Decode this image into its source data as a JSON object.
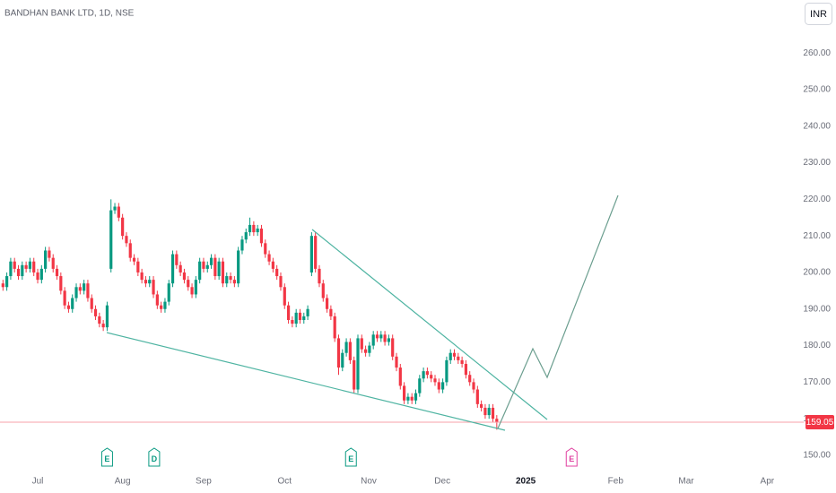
{
  "chart_data": {
    "type": "candlestick",
    "title": "BANDHAN BANK LTD, 1D, NSE",
    "currency": "INR",
    "series": [
      {
        "up_color": "#089981",
        "down_color": "#f23645",
        "open": [
          197,
          196,
          199,
          203,
          201,
          199,
          202,
          201,
          203,
          200,
          198,
          201,
          206,
          204,
          201,
          199,
          195,
          191,
          190,
          193,
          196,
          195,
          197,
          193,
          190,
          188,
          186,
          185,
          201,
          217,
          218,
          215,
          210,
          208,
          204,
          203,
          200,
          198,
          197,
          198,
          194,
          191,
          190,
          192,
          197,
          205,
          202,
          200,
          198,
          196,
          194,
          198,
          203,
          201,
          202,
          204,
          199,
          203,
          197,
          199,
          198,
          197,
          206,
          209,
          211,
          213,
          211,
          212,
          208,
          205,
          203,
          201,
          199,
          196,
          191,
          187,
          186,
          189,
          187,
          188,
          200,
          210,
          201,
          197,
          193,
          190,
          188,
          182,
          174,
          178,
          181,
          176,
          168,
          182,
          179,
          178,
          180,
          183,
          182,
          183,
          181,
          182,
          177,
          174,
          169,
          165,
          166,
          165,
          167,
          171,
          173,
          172,
          171,
          170,
          168,
          170,
          176,
          178,
          177,
          176,
          175,
          172,
          170,
          168,
          164,
          163,
          161,
          163,
          160
        ],
        "high": [
          198,
          200,
          204,
          204,
          202,
          203,
          203,
          204,
          204,
          201,
          202,
          207,
          207,
          205,
          202,
          200,
          196,
          192,
          194,
          197,
          197,
          198,
          198,
          194,
          191,
          189,
          187,
          192,
          220,
          219,
          219,
          216,
          211,
          209,
          205,
          204,
          201,
          199,
          199,
          199,
          195,
          192,
          193,
          198,
          206,
          206,
          203,
          201,
          199,
          197,
          199,
          204,
          204,
          203,
          205,
          205,
          204,
          204,
          200,
          200,
          199,
          207,
          210,
          212,
          215,
          214,
          213,
          213,
          209,
          206,
          204,
          202,
          200,
          197,
          192,
          188,
          190,
          190,
          189,
          191,
          211,
          211,
          202,
          198,
          194,
          191,
          189,
          183,
          179,
          182,
          182,
          177,
          183,
          183,
          180,
          181,
          184,
          184,
          184,
          184,
          183,
          183,
          178,
          175,
          170,
          167,
          167,
          168,
          172,
          174,
          174,
          173,
          172,
          171,
          171,
          177,
          179,
          179,
          178,
          177,
          176,
          173,
          171,
          169,
          165,
          164,
          164,
          164,
          161
        ],
        "low": [
          195,
          195,
          198,
          200,
          198,
          198,
          200,
          200,
          199,
          197,
          197,
          200,
          203,
          200,
          198,
          194,
          190,
          189,
          189,
          192,
          194,
          194,
          192,
          189,
          187,
          185,
          184,
          184,
          200,
          216,
          214,
          209,
          207,
          203,
          202,
          199,
          197,
          196,
          196,
          193,
          190,
          189,
          189,
          191,
          196,
          201,
          199,
          197,
          195,
          193,
          193,
          197,
          200,
          200,
          201,
          198,
          198,
          196,
          196,
          197,
          196,
          196,
          205,
          208,
          210,
          210,
          210,
          207,
          204,
          202,
          200,
          198,
          195,
          190,
          186,
          185,
          185,
          186,
          186,
          187,
          199,
          200,
          196,
          192,
          189,
          187,
          181,
          172,
          173,
          177,
          175,
          167,
          167,
          178,
          177,
          177,
          179,
          181,
          181,
          180,
          180,
          176,
          173,
          168,
          164,
          164,
          164,
          164,
          166,
          170,
          171,
          170,
          169,
          167,
          167,
          169,
          175,
          176,
          175,
          174,
          171,
          169,
          167,
          163,
          162,
          160,
          160,
          159,
          157
        ],
        "close": [
          196,
          199,
          203,
          201,
          199,
          202,
          201,
          203,
          200,
          198,
          201,
          206,
          204,
          201,
          199,
          195,
          191,
          190,
          193,
          196,
          195,
          197,
          193,
          190,
          188,
          186,
          185,
          191,
          217,
          218,
          215,
          210,
          208,
          204,
          203,
          200,
          198,
          197,
          198,
          194,
          191,
          190,
          192,
          197,
          205,
          202,
          200,
          198,
          196,
          194,
          198,
          203,
          201,
          202,
          204,
          199,
          203,
          197,
          199,
          198,
          197,
          206,
          209,
          211,
          213,
          211,
          212,
          208,
          205,
          203,
          201,
          199,
          196,
          191,
          187,
          186,
          189,
          187,
          188,
          190,
          210,
          201,
          197,
          193,
          190,
          188,
          182,
          174,
          178,
          181,
          176,
          168,
          182,
          179,
          178,
          180,
          183,
          182,
          183,
          181,
          182,
          177,
          174,
          169,
          165,
          166,
          165,
          167,
          171,
          173,
          172,
          171,
          170,
          168,
          170,
          176,
          178,
          177,
          176,
          175,
          172,
          170,
          168,
          164,
          163,
          161,
          163,
          160,
          159.05
        ]
      }
    ],
    "xlim": [
      -0.77,
      205.7
    ],
    "xticks": [
      {
        "value": 9,
        "label": "Jul"
      },
      {
        "value": 31,
        "label": "Aug"
      },
      {
        "value": 52,
        "label": "Sep"
      },
      {
        "value": 73,
        "label": "Oct"
      },
      {
        "value": 94.8,
        "label": "Nov"
      },
      {
        "value": 113.9,
        "label": "Dec"
      },
      135.5,
      {
        "value": 158.8,
        "label": "Feb"
      },
      {
        "value": 177.1,
        "label": "Mar"
      },
      {
        "value": 198.1,
        "label": "Apr"
      }
    ],
    "ylim": [
      144.6,
      274.5
    ],
    "yticks": [
      {
        "value": 150,
        "label": "150.00"
      },
      {
        "value": 160,
        "label": "160.00"
      },
      {
        "value": 170,
        "label": "170.00"
      },
      {
        "value": 180,
        "label": "180.00"
      },
      {
        "value": 190,
        "label": "190.00"
      },
      {
        "value": 200,
        "label": "200.00"
      },
      {
        "value": 210,
        "label": "210.00"
      },
      {
        "value": 220,
        "label": "220.00"
      },
      {
        "value": 230,
        "label": "230.00"
      },
      {
        "value": 240,
        "label": "240.00"
      },
      {
        "value": 250,
        "label": "250.00"
      },
      {
        "value": 260,
        "label": "260.00"
      }
    ],
    "xtick_year": {
      "value": 135.5,
      "label": "2025"
    },
    "events": [
      {
        "label": "E",
        "x": 27,
        "color": "#089981"
      },
      {
        "label": "D",
        "x": 39.2,
        "color": "#089981"
      },
      {
        "label": "E",
        "x": 90.2,
        "color": "#089981"
      },
      {
        "label": "E",
        "x": 147.4,
        "color": "#e040a0"
      }
    ]
  }
}
